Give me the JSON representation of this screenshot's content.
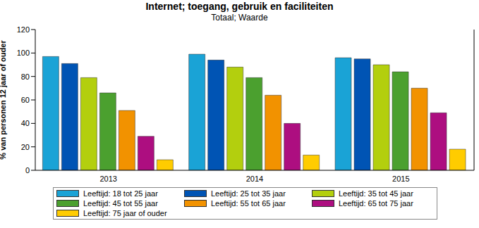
{
  "chart_data": {
    "type": "bar",
    "title": "Internet; toegang, gebruik en faciliteiten",
    "subtitle": "Totaal; Waarde",
    "y_label": "% van personen 12 jaar of ouder",
    "categories": [
      "2013",
      "2014",
      "2015"
    ],
    "series": [
      {
        "name": "Leeftijd: 18 tot 25 jaar",
        "color": "#1aa3d6",
        "values": [
          97,
          99,
          96
        ]
      },
      {
        "name": "Leeftijd: 25 tot 35 jaar",
        "color": "#0054b4",
        "values": [
          91,
          94,
          95
        ]
      },
      {
        "name": "Leeftijd: 35 tot 45 jaar",
        "color": "#b3cf0e",
        "values": [
          79,
          88,
          90
        ]
      },
      {
        "name": "Leeftijd: 45 tot 55 jaar",
        "color": "#4ba02f",
        "values": [
          66,
          79,
          84
        ]
      },
      {
        "name": "Leeftijd: 55 tot 65 jaar",
        "color": "#f29200",
        "values": [
          51,
          64,
          70
        ]
      },
      {
        "name": "Leeftijd: 65 tot 75 jaar",
        "color": "#ad0e80",
        "values": [
          29,
          40,
          49
        ]
      },
      {
        "name": "Leeftijd: 75 jaar of ouder",
        "color": "#ffcc00",
        "values": [
          9,
          13,
          18
        ]
      }
    ],
    "ylim": [
      0,
      120
    ],
    "yticks": [
      0,
      20,
      40,
      60,
      80,
      100,
      120
    ],
    "grid": false,
    "legend": "bottom"
  }
}
